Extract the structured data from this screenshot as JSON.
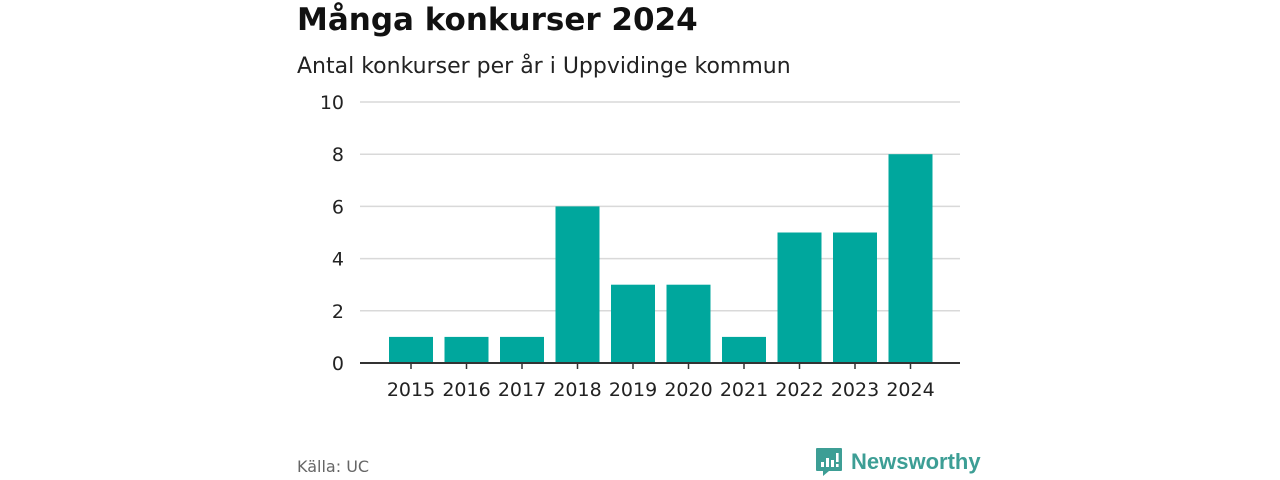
{
  "header": {
    "title": "Många konkurser 2024",
    "subtitle": "Antal konkurser per år i Uppvidinge kommun"
  },
  "footer": {
    "source": "Källa: UC",
    "brand": "Newsworthy"
  },
  "colors": {
    "bar": "#00a79d",
    "grid": "#d9d9d9",
    "axis": "#333333",
    "brand": "#3d9e95"
  },
  "chart_data": {
    "type": "bar",
    "categories": [
      "2015",
      "2016",
      "2017",
      "2018",
      "2019",
      "2020",
      "2021",
      "2022",
      "2023",
      "2024"
    ],
    "values": [
      1,
      1,
      1,
      6,
      3,
      3,
      1,
      5,
      5,
      8
    ],
    "title": "Många konkurser 2024",
    "subtitle": "Antal konkurser per år i Uppvidinge kommun",
    "xlabel": "",
    "ylabel": "",
    "ylim": [
      0,
      10
    ],
    "yticks": [
      0,
      2,
      4,
      6,
      8,
      10
    ],
    "grid": true,
    "legend": "none"
  }
}
